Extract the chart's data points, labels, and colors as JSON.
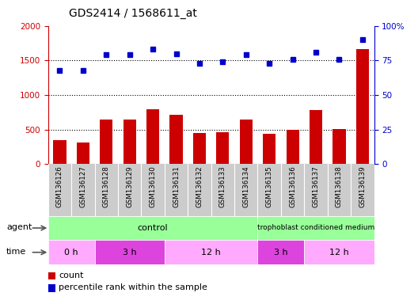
{
  "title": "GDS2414 / 1568611_at",
  "samples": [
    "GSM136126",
    "GSM136127",
    "GSM136128",
    "GSM136129",
    "GSM136130",
    "GSM136131",
    "GSM136132",
    "GSM136133",
    "GSM136134",
    "GSM136135",
    "GSM136136",
    "GSM136137",
    "GSM136138",
    "GSM136139"
  ],
  "counts": [
    350,
    310,
    640,
    650,
    790,
    710,
    450,
    460,
    640,
    440,
    500,
    780,
    510,
    1660
  ],
  "percentile_ranks": [
    68,
    68,
    79,
    79,
    83,
    80,
    73,
    74,
    79,
    73,
    76,
    81,
    76,
    90
  ],
  "left_ylim": [
    0,
    2000
  ],
  "right_ylim": [
    0,
    100
  ],
  "left_yticks": [
    0,
    500,
    1000,
    1500,
    2000
  ],
  "right_yticks": [
    0,
    25,
    50,
    75,
    100
  ],
  "right_yticklabels": [
    "0",
    "25",
    "50",
    "75",
    "100%"
  ],
  "bar_color": "#cc0000",
  "dot_color": "#0000cc",
  "bg_color": "#ffffff",
  "xlabel_area_color": "#cccccc",
  "agent_color": "#99ff99",
  "time_color_light": "#ffaaff",
  "time_color_dark": "#cc44cc",
  "agent_label": "agent",
  "time_label": "time",
  "legend_count_label": "count",
  "legend_percentile_label": "percentile rank within the sample",
  "tick_label_color_left": "#cc0000",
  "tick_label_color_right": "#0000cc"
}
